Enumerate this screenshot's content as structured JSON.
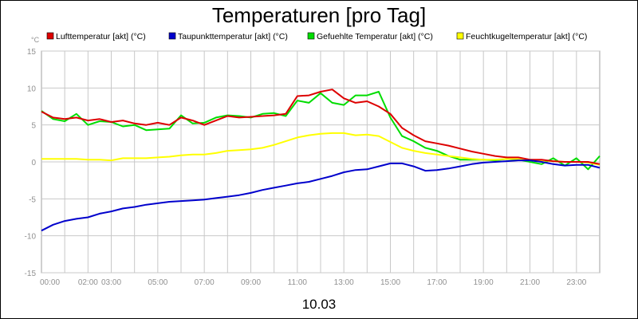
{
  "chart_data": {
    "type": "line",
    "title": "Temperaturen [pro Tag]",
    "ylabel": "°C",
    "xlabel": "10.03",
    "ylim": [
      -15,
      15
    ],
    "yticks": [
      15,
      10,
      5,
      0,
      -5,
      -10,
      -15
    ],
    "xlim": [
      0,
      24
    ],
    "xticks": [
      {
        "value": 0,
        "label": "00:00"
      },
      {
        "value": 2,
        "label": "02:00"
      },
      {
        "value": 3,
        "label": "03:00"
      },
      {
        "value": 5,
        "label": "05:00"
      },
      {
        "value": 7,
        "label": "07:00"
      },
      {
        "value": 9,
        "label": "09:00"
      },
      {
        "value": 11,
        "label": "11:00"
      },
      {
        "value": 13,
        "label": "13:00"
      },
      {
        "value": 15,
        "label": "15:00"
      },
      {
        "value": 17,
        "label": "17:00"
      },
      {
        "value": 19,
        "label": "19:00"
      },
      {
        "value": 21,
        "label": "21:00"
      },
      {
        "value": 23,
        "label": "23:00"
      }
    ],
    "grid": true,
    "legend_position": "top",
    "series": [
      {
        "name": "Lufttemperatur [akt] (°C)",
        "color": "#dd0000",
        "x": [
          0,
          0.5,
          1,
          1.5,
          2,
          2.5,
          3,
          3.5,
          4,
          4.5,
          5,
          5.5,
          6,
          6.5,
          7,
          7.5,
          8,
          8.5,
          9,
          9.5,
          10,
          10.5,
          11,
          11.5,
          12,
          12.5,
          13,
          13.5,
          14,
          14.5,
          15,
          15.5,
          16,
          16.5,
          17,
          17.5,
          18,
          18.5,
          19,
          19.5,
          20,
          20.5,
          21,
          21.5,
          22,
          22.5,
          23,
          23.5,
          24
        ],
        "values": [
          6.8,
          6.0,
          5.8,
          6.0,
          5.6,
          5.8,
          5.4,
          5.6,
          5.2,
          5.0,
          5.3,
          5.0,
          6.0,
          5.6,
          5.0,
          5.6,
          6.2,
          6.0,
          6.1,
          6.2,
          6.3,
          6.5,
          8.9,
          9.0,
          9.5,
          9.8,
          8.6,
          8.0,
          8.2,
          7.5,
          6.5,
          4.6,
          3.6,
          2.8,
          2.5,
          2.2,
          1.8,
          1.4,
          1.1,
          0.8,
          0.6,
          0.6,
          0.3,
          0.3,
          0.1,
          0.0,
          0.0,
          0.0,
          -0.3
        ]
      },
      {
        "name": "Taupunkttemperatur [akt] (°C)",
        "color": "#0000cc",
        "x": [
          0,
          0.5,
          1,
          1.5,
          2,
          2.5,
          3,
          3.5,
          4,
          4.5,
          5,
          5.5,
          6,
          6.5,
          7,
          7.5,
          8,
          8.5,
          9,
          9.5,
          10,
          10.5,
          11,
          11.5,
          12,
          12.5,
          13,
          13.5,
          14,
          14.5,
          15,
          15.5,
          16,
          16.5,
          17,
          17.5,
          18,
          18.5,
          19,
          19.5,
          20,
          20.5,
          21,
          21.5,
          22,
          22.5,
          23,
          23.5,
          24
        ],
        "values": [
          -9.3,
          -8.5,
          -8.0,
          -7.7,
          -7.5,
          -7.0,
          -6.7,
          -6.3,
          -6.1,
          -5.8,
          -5.6,
          -5.4,
          -5.3,
          -5.2,
          -5.1,
          -4.9,
          -4.7,
          -4.5,
          -4.2,
          -3.8,
          -3.5,
          -3.2,
          -2.9,
          -2.7,
          -2.3,
          -1.9,
          -1.4,
          -1.1,
          -1.0,
          -0.6,
          -0.2,
          -0.2,
          -0.6,
          -1.2,
          -1.1,
          -0.9,
          -0.6,
          -0.3,
          -0.1,
          0.0,
          0.1,
          0.2,
          0.2,
          0.0,
          -0.3,
          -0.5,
          -0.4,
          -0.4,
          -0.8
        ]
      },
      {
        "name": "Gefuehlte Temperatur [akt] (°C)",
        "color": "#00dd00",
        "x": [
          0,
          0.5,
          1,
          1.5,
          2,
          2.5,
          3,
          3.5,
          4,
          4.5,
          5,
          5.5,
          6,
          6.5,
          7,
          7.5,
          8,
          8.5,
          9,
          9.5,
          10,
          10.5,
          11,
          11.5,
          12,
          12.5,
          13,
          13.5,
          14,
          14.5,
          15,
          15.5,
          16,
          16.5,
          17,
          17.5,
          18,
          18.5,
          19,
          19.5,
          20,
          20.5,
          21,
          21.5,
          22,
          22.5,
          23,
          23.5,
          24
        ],
        "values": [
          6.9,
          5.8,
          5.5,
          6.5,
          5.0,
          5.5,
          5.4,
          4.8,
          5.0,
          4.3,
          4.4,
          4.5,
          6.3,
          5.2,
          5.3,
          6.0,
          6.3,
          6.2,
          6.0,
          6.5,
          6.6,
          6.2,
          8.3,
          8.0,
          9.3,
          8.0,
          7.7,
          9.0,
          9.0,
          9.5,
          6.0,
          3.5,
          2.8,
          1.9,
          1.5,
          0.8,
          0.3,
          0.3,
          0.3,
          0.2,
          0.4,
          0.3,
          0.0,
          -0.3,
          0.5,
          -0.5,
          0.5,
          -1.0,
          0.8
        ]
      },
      {
        "name": "Feuchtkugeltemperatur [akt] (°C)",
        "color": "#ffff00",
        "x": [
          0,
          0.5,
          1,
          1.5,
          2,
          2.5,
          3,
          3.5,
          4,
          4.5,
          5,
          5.5,
          6,
          6.5,
          7,
          7.5,
          8,
          8.5,
          9,
          9.5,
          10,
          10.5,
          11,
          11.5,
          12,
          12.5,
          13,
          13.5,
          14,
          14.5,
          15,
          15.5,
          16,
          16.5,
          17,
          17.5,
          18,
          18.5,
          19,
          19.5,
          20,
          20.5,
          21,
          21.5,
          22,
          22.5,
          23,
          23.5,
          24
        ],
        "values": [
          0.4,
          0.4,
          0.4,
          0.4,
          0.3,
          0.3,
          0.2,
          0.5,
          0.5,
          0.5,
          0.6,
          0.7,
          0.9,
          1.0,
          1.0,
          1.2,
          1.5,
          1.6,
          1.7,
          1.9,
          2.3,
          2.8,
          3.3,
          3.6,
          3.8,
          3.9,
          3.9,
          3.6,
          3.7,
          3.5,
          2.7,
          1.9,
          1.5,
          1.2,
          1.0,
          0.8,
          0.6,
          0.4,
          0.3,
          0.3,
          0.4,
          0.4,
          0.3,
          0.2,
          0.1,
          0.0,
          0.0,
          -0.1,
          -0.4
        ]
      }
    ]
  }
}
